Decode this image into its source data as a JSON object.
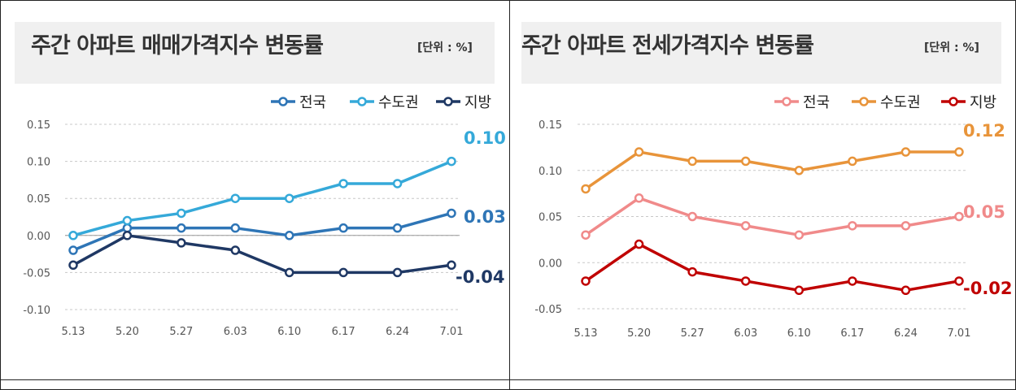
{
  "charts": [
    {
      "title": "주간 아파트 매매가격지수 변동률",
      "unit": "[단위 : %]",
      "chart_data": {
        "type": "line",
        "x": [
          "5.13",
          "5.20",
          "5.27",
          "6.03",
          "6.10",
          "6.17",
          "6.24",
          "7.01"
        ],
        "ylim": [
          -0.1,
          0.15
        ],
        "yticks": [
          "0.15",
          "0.10",
          "0.05",
          "0.00",
          "-0.05",
          "-0.10"
        ],
        "series": [
          {
            "name": "전국",
            "color": "#2e75b6",
            "values": [
              -0.02,
              0.01,
              0.01,
              0.01,
              0.0,
              0.01,
              0.01,
              0.03
            ],
            "end_label": "0.03"
          },
          {
            "name": "수도권",
            "color": "#35a9d9",
            "values": [
              0.0,
              0.02,
              0.03,
              0.05,
              0.05,
              0.07,
              0.07,
              0.1
            ],
            "end_label": "0.10"
          },
          {
            "name": "지방",
            "color": "#1f3864",
            "values": [
              -0.04,
              0.0,
              -0.01,
              -0.02,
              -0.05,
              -0.05,
              -0.05,
              -0.04
            ],
            "end_label": "-0.04"
          }
        ]
      }
    },
    {
      "title": "주간 아파트 전세가격지수 변동률",
      "unit": "[단위 : %]",
      "chart_data": {
        "type": "line",
        "x": [
          "5.13",
          "5.20",
          "5.27",
          "6.03",
          "6.10",
          "6.17",
          "6.24",
          "7.01"
        ],
        "ylim": [
          -0.05,
          0.15
        ],
        "yticks": [
          "0.15",
          "0.10",
          "0.05",
          "0.00",
          "-0.05"
        ],
        "series": [
          {
            "name": "전국",
            "color": "#f08a8a",
            "values": [
              0.03,
              0.07,
              0.05,
              0.04,
              0.03,
              0.04,
              0.04,
              0.05
            ],
            "end_label": "0.05"
          },
          {
            "name": "수도권",
            "color": "#e8943a",
            "values": [
              0.08,
              0.12,
              0.11,
              0.11,
              0.1,
              0.11,
              0.12,
              0.12
            ],
            "end_label": "0.12"
          },
          {
            "name": "지방",
            "color": "#c00000",
            "values": [
              -0.02,
              0.02,
              -0.01,
              -0.02,
              -0.03,
              -0.02,
              -0.03,
              -0.02
            ],
            "end_label": "-0.02"
          }
        ]
      }
    }
  ]
}
